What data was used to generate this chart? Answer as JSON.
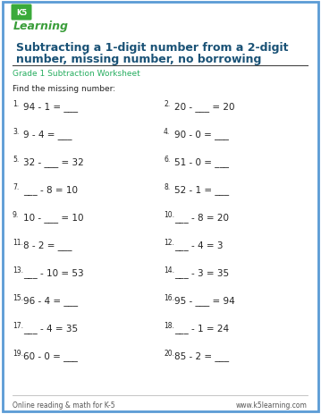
{
  "title_line1": "Subtracting a 1-digit number from a 2-digit",
  "title_line2": "number, missing number, no borrowing",
  "subtitle": "Grade 1 Subtraction Worksheet",
  "instruction": "Find the missing number:",
  "title_color": "#1a5276",
  "subtitle_color": "#27ae60",
  "border_color": "#5b9bd5",
  "footer_left": "Online reading & math for K-5",
  "footer_right": "www.k5learning.com",
  "problems": [
    [
      "1.",
      "94 - 1 = ___",
      "2.",
      "20 - ___ = 20"
    ],
    [
      "3.",
      "9 - 4 = ___",
      "4.",
      "90 - 0 = ___"
    ],
    [
      "5.",
      "32 - ___ = 32",
      "6.",
      "51 - 0 = ___"
    ],
    [
      "7.",
      "___ - 8 = 10",
      "8.",
      "52 - 1 = ___"
    ],
    [
      "9.",
      "10 - ___ = 10",
      "10.",
      "___ - 8 = 20"
    ],
    [
      "11.",
      "8 - 2 = ___",
      "12.",
      "___ - 4 = 3"
    ],
    [
      "13.",
      "___ - 10 = 53",
      "14.",
      "___ - 3 = 35"
    ],
    [
      "15.",
      "96 - 4 = ___",
      "16.",
      "95 - ___ = 94"
    ],
    [
      "17.",
      "___ - 4 = 35",
      "18.",
      "___ - 1 = 24"
    ],
    [
      "19.",
      "60 - 0 = ___",
      "20.",
      "85 - 2 = ___"
    ]
  ],
  "background": "#ffffff",
  "text_color": "#222222",
  "logo_green": "#3a9e3a",
  "logo_blue": "#2e6da4",
  "num_fontsize": 5.5,
  "prob_fontsize": 7.5,
  "title_fontsize": 9.0,
  "subtitle_fontsize": 6.5,
  "instr_fontsize": 6.5,
  "footer_fontsize": 5.5
}
